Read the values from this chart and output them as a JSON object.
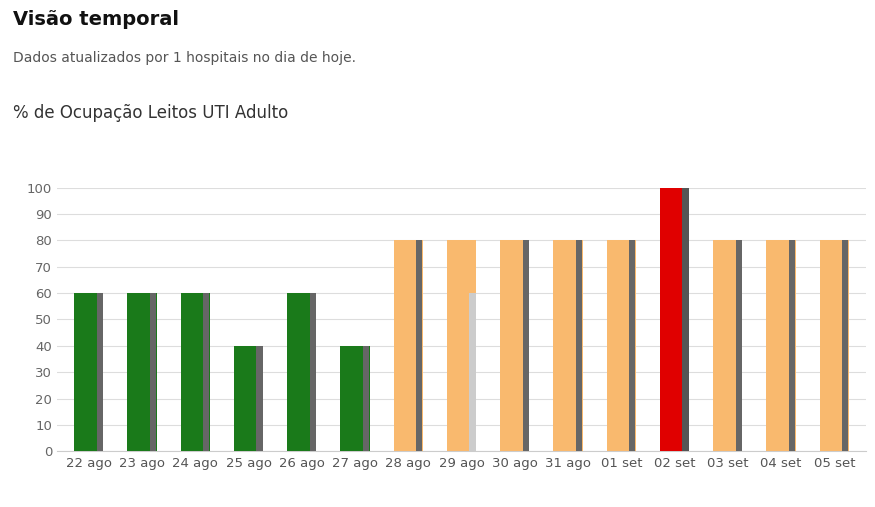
{
  "title": "Visão temporal",
  "subtitle": "Dados atualizados por 1 hospitais no dia de hoje.",
  "chart_label": "% de Ocupação Leitos UTI Adulto",
  "categories": [
    "22 ago",
    "23 ago",
    "24 ago",
    "25 ago",
    "26 ago",
    "27 ago",
    "28 ago",
    "29 ago",
    "30 ago",
    "31 ago",
    "01 set",
    "02 set",
    "03 set",
    "04 set",
    "05 set"
  ],
  "main_values": [
    60,
    60,
    60,
    40,
    60,
    40,
    80,
    80,
    80,
    80,
    80,
    100,
    80,
    80,
    80
  ],
  "overlay_values": [
    60,
    60,
    60,
    40,
    60,
    40,
    80,
    60,
    80,
    80,
    80,
    100,
    80,
    80,
    80
  ],
  "main_colors": [
    "#1a7a1a",
    "#1a7a1a",
    "#1a7a1a",
    "#1a7a1a",
    "#1a7a1a",
    "#1a7a1a",
    "#f9b96e",
    "#f9b96e",
    "#f9b96e",
    "#f9b96e",
    "#f9b96e",
    "#e00000",
    "#f9b96e",
    "#f9b96e",
    "#f9b96e"
  ],
  "overlay_colors": [
    "#666666",
    "#666666",
    "#666666",
    "#666666",
    "#666666",
    "#666666",
    "#666666",
    "#cccccc",
    "#666666",
    "#666666",
    "#666666",
    "#555555",
    "#666666",
    "#666666",
    "#666666"
  ],
  "ylim": [
    0,
    100
  ],
  "yticks": [
    0,
    10,
    20,
    30,
    40,
    50,
    60,
    70,
    80,
    90,
    100
  ],
  "background_color": "#ffffff",
  "grid_color": "#dddddd",
  "title_fontsize": 14,
  "subtitle_fontsize": 10,
  "chart_label_fontsize": 12,
  "tick_fontsize": 9.5
}
